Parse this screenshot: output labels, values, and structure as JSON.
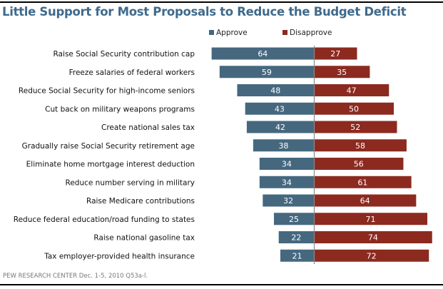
{
  "chart_data": {
    "type": "bar",
    "orientation": "horizontal-diverging",
    "title": "Little Support for Most Proposals to Reduce the Budget Deficit",
    "categories": [
      "Raise Social Security contribution cap",
      "Freeze salaries of federal workers",
      "Reduce Social Security for high-income seniors",
      "Cut back on military weapons programs",
      "Create national sales tax",
      "Gradually raise Social Security retirement age",
      "Eliminate home mortgage interest deduction",
      "Reduce number serving in military",
      "Raise Medicare contributions",
      "Reduce federal education/road funding to states",
      "Raise national gasoline tax",
      "Tax employer-provided health insurance"
    ],
    "series": [
      {
        "name": "Approve",
        "color": "#45687f",
        "values": [
          64,
          59,
          48,
          43,
          42,
          38,
          34,
          34,
          32,
          25,
          22,
          21
        ]
      },
      {
        "name": "Disapprove",
        "color": "#8c2a20",
        "values": [
          27,
          35,
          47,
          50,
          52,
          58,
          56,
          61,
          64,
          71,
          74,
          72
        ]
      }
    ],
    "legend": "top",
    "xlabel": "",
    "ylabel": "",
    "xlim": [
      -70,
      75
    ],
    "grid": false,
    "source": "PEW RESEARCH  CENTER Dec. 1-5, 2010 Q53a-l."
  }
}
